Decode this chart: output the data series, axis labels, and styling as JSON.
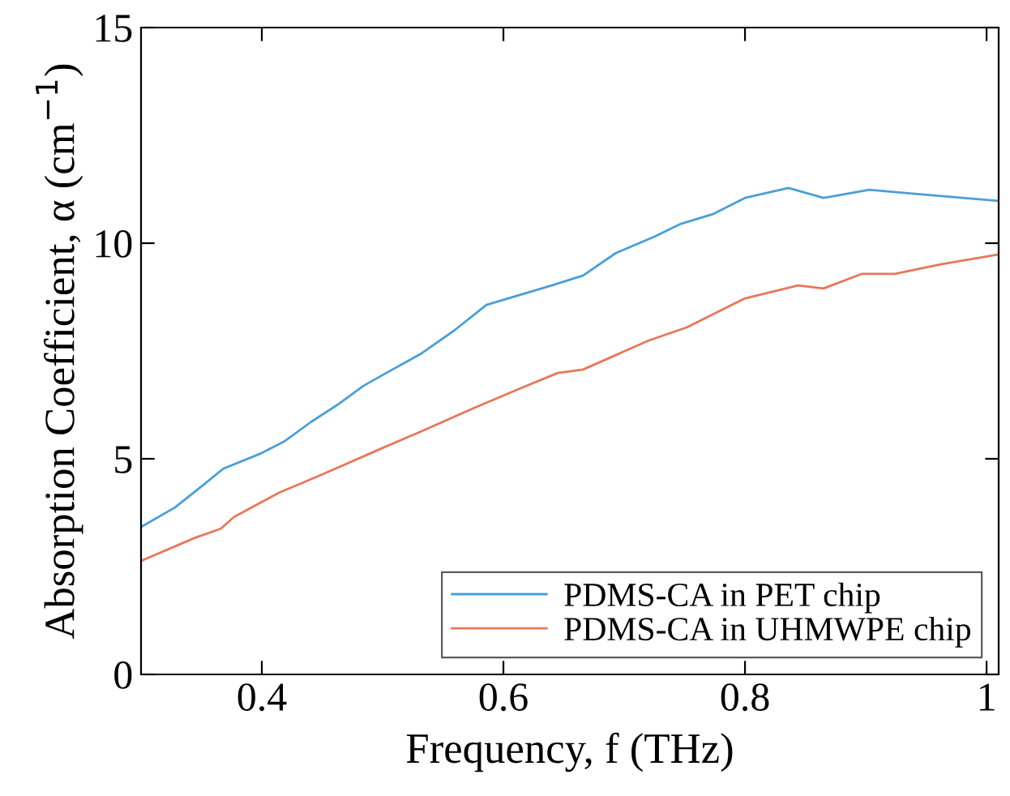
{
  "chart_data": {
    "type": "line",
    "xlabel": "Frequency, f (THz)",
    "ylabel": "Absorption Coefficient, α (cm$^{−1}$)",
    "xlim": [
      0.3,
      1.01
    ],
    "xticks": [
      0.4,
      0.6,
      0.8,
      1
    ],
    "ylim": [
      0,
      15
    ],
    "yticks": [
      0,
      5,
      10,
      15
    ],
    "grid": false,
    "legend": "bottom right",
    "marker": "none",
    "line_style": "solid",
    "series": [
      {
        "name": "PDMS-CA in PET chip",
        "color": "#4a9fd8",
        "x": [
          0.3,
          0.328,
          0.355,
          0.368,
          0.398,
          0.419,
          0.441,
          0.462,
          0.484,
          0.503,
          0.532,
          0.559,
          0.586,
          0.64,
          0.666,
          0.693,
          0.725,
          0.747,
          0.774,
          0.8,
          0.836,
          0.865,
          0.903,
          0.935,
          1.01
        ],
        "values": [
          3.42,
          3.87,
          4.47,
          4.77,
          5.11,
          5.41,
          5.86,
          6.24,
          6.69,
          6.99,
          7.44,
          7.97,
          8.57,
          9.02,
          9.25,
          9.77,
          10.15,
          10.45,
          10.68,
          11.05,
          11.28,
          11.05,
          11.24,
          11.16,
          10.98
        ]
      },
      {
        "name": "PDMS-CA in UHMWPE chip",
        "color": "#e8775a",
        "x": [
          0.3,
          0.344,
          0.366,
          0.377,
          0.414,
          0.452,
          0.495,
          0.538,
          0.575,
          0.613,
          0.645,
          0.666,
          0.72,
          0.752,
          0.8,
          0.844,
          0.865,
          0.897,
          0.924,
          0.962,
          1.01
        ],
        "values": [
          2.63,
          3.16,
          3.38,
          3.65,
          4.21,
          4.66,
          5.19,
          5.71,
          6.17,
          6.62,
          6.99,
          7.07,
          7.74,
          8.05,
          8.72,
          9.02,
          8.95,
          9.29,
          9.29,
          9.51,
          9.74
        ]
      }
    ]
  }
}
